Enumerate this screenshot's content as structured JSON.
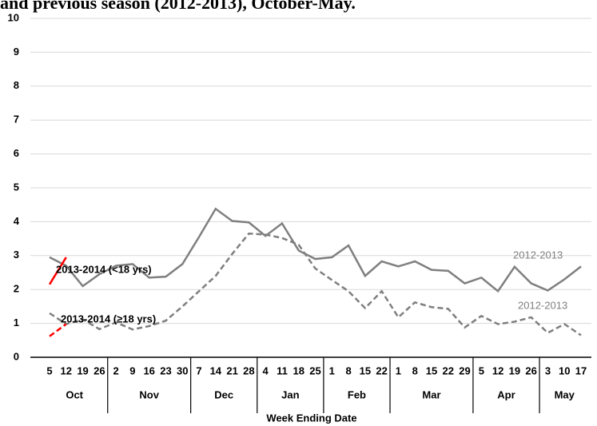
{
  "chart_data": {
    "type": "line",
    "title": "and previous season (2012-2013), October-May.",
    "x_label": "Week Ending Date",
    "categories": [
      "5",
      "12",
      "19",
      "26",
      "2",
      "9",
      "16",
      "23",
      "30",
      "7",
      "14",
      "21",
      "28",
      "4",
      "11",
      "18",
      "25",
      "1",
      "8",
      "15",
      "22",
      "1",
      "8",
      "15",
      "22",
      "29",
      "5",
      "12",
      "19",
      "26",
      "3",
      "10",
      "17"
    ],
    "months": [
      "Oct",
      "Nov",
      "Dec",
      "Jan",
      "Feb",
      "Mar",
      "Apr",
      "May"
    ],
    "series": [
      {
        "name": "2012-2013",
        "color": "#7f7f7f",
        "dashed": false,
        "values": [
          2.95,
          2.7,
          2.1,
          2.45,
          2.7,
          2.75,
          2.35,
          2.38,
          2.75,
          3.55,
          4.38,
          4.02,
          3.98,
          3.58,
          3.95,
          3.15,
          2.9,
          2.95,
          3.3,
          2.4,
          2.83,
          2.68,
          2.83,
          2.58,
          2.55,
          2.18,
          2.35,
          1.95,
          2.67,
          2.18,
          1.97,
          2.3,
          2.68
        ]
      },
      {
        "name": "2012-2013",
        "color": "#7f7f7f",
        "dashed": true,
        "values": [
          1.3,
          0.98,
          1.12,
          0.83,
          1.03,
          0.82,
          0.92,
          1.08,
          1.5,
          1.95,
          2.4,
          3.05,
          3.65,
          3.62,
          3.52,
          3.32,
          2.62,
          2.28,
          1.95,
          1.45,
          1.95,
          1.18,
          1.62,
          1.48,
          1.43,
          0.88,
          1.22,
          0.98,
          1.05,
          1.18,
          0.72,
          0.98,
          0.65
        ]
      },
      {
        "name": "2013-2014 (<18 yrs)",
        "color": "#ff0000",
        "dashed": false,
        "values": [
          2.15,
          2.95,
          null,
          null,
          null,
          null,
          null,
          null,
          null,
          null,
          null,
          null,
          null,
          null,
          null,
          null,
          null,
          null,
          null,
          null,
          null,
          null,
          null,
          null,
          null,
          null,
          null,
          null,
          null,
          null,
          null,
          null,
          null
        ]
      },
      {
        "name": "2013-2014 (≥18 yrs)",
        "color": "#ff0000",
        "dashed": true,
        "values": [
          0.62,
          0.98,
          null,
          null,
          null,
          null,
          null,
          null,
          null,
          null,
          null,
          null,
          null,
          null,
          null,
          null,
          null,
          null,
          null,
          null,
          null,
          null,
          null,
          null,
          null,
          null,
          null,
          null,
          null,
          null,
          null,
          null,
          null
        ]
      }
    ],
    "ylim": [
      0,
      10
    ],
    "yticks": [
      0,
      1,
      2,
      3,
      4,
      5,
      6,
      7,
      8,
      9,
      10
    ],
    "grid": true
  }
}
